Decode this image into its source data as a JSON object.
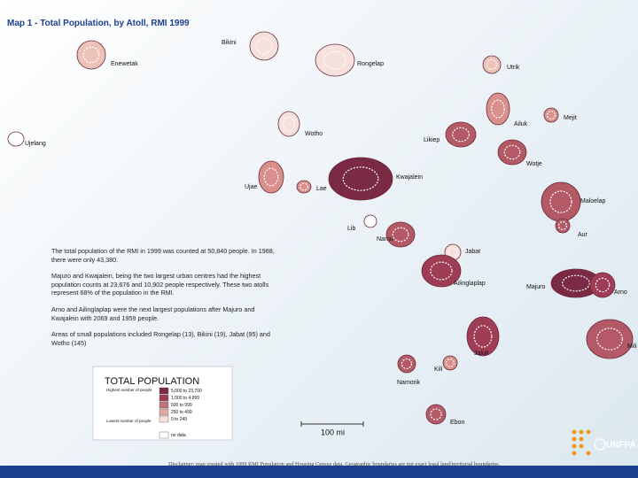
{
  "title": "Map 1 - Total Population, by Atoll, RMI 1999",
  "paragraphs": [
    "The total population of the RMI in 1999 was counted at 50,840 people. In 1988, there were only 43,380.",
    "Majuro and Kwajalein, being the two largest urban centres had the highest population counts at 23,676 and 10,902 people respectively. These two atolls represent 68% of the population in the RMI.",
    "Arno and Ailinglaplap were the next largest populations after Majuro and Kwajalein with 2069 and 1959 people.",
    "Areas of small populations included Rongelap (13), Bikini (19), Jabat (95) and Wotho (145)"
  ],
  "atolls": [
    {
      "label": "Bikini",
      "color": "#f6e1dc"
    },
    {
      "label": "Enewetak",
      "color": "#ecc2b9"
    },
    {
      "label": "Rongelap",
      "color": "#f6e1dc"
    },
    {
      "label": "Utrik",
      "color": "#ecc2b9"
    },
    {
      "label": "Ujelang",
      "color": "#ffffff"
    },
    {
      "label": "Wotho",
      "color": "#f6e1dc"
    },
    {
      "label": "Ailuk",
      "color": "#d98f8c"
    },
    {
      "label": "Mejit",
      "color": "#d98f8c"
    },
    {
      "label": "Likiep",
      "color": "#b35a66"
    },
    {
      "label": "Wotje",
      "color": "#b35a66"
    },
    {
      "label": "Kwajalein",
      "color": "#7a2a45"
    },
    {
      "label": "Ujae",
      "color": "#d98f8c"
    },
    {
      "label": "Lae",
      "color": "#d98f8c"
    },
    {
      "label": "Maloelap",
      "color": "#b35a66"
    },
    {
      "label": "Lib",
      "color": "#ffffff"
    },
    {
      "label": "Namu",
      "color": "#b35a66"
    },
    {
      "label": "Aur",
      "color": "#b35a66"
    },
    {
      "label": "Jabat",
      "color": "#f6e1dc"
    },
    {
      "label": "Ailinglaplap",
      "color": "#9e3d55"
    },
    {
      "label": "Majuro",
      "color": "#7a2a45"
    },
    {
      "label": "Arno",
      "color": "#9e3d55"
    },
    {
      "label": "Mili",
      "color": "#b35a66"
    },
    {
      "label": "Jaluit",
      "color": "#9e3d55"
    },
    {
      "label": "Kili",
      "color": "#d98f8c"
    },
    {
      "label": "Namorik",
      "color": "#b35a66"
    },
    {
      "label": "Ebon",
      "color": "#b35a66"
    }
  ],
  "legend": {
    "title": "TOTAL POPULATION",
    "high": "Highest number of people",
    "low": "Lowest number of people",
    "items": [
      {
        "label": "5,000 to 23,700",
        "color": "#7a2a45"
      },
      {
        "label": "1,000 to 4,999",
        "color": "#9e3d55"
      },
      {
        "label": "500 to 999",
        "color": "#c5727a"
      },
      {
        "label": "250 to 499",
        "color": "#e2a8a2"
      },
      {
        "label": "0 to 249",
        "color": "#f6e1dc"
      },
      {
        "label": "no data",
        "color": "#ffffff"
      }
    ]
  },
  "scale": "100 mi",
  "disclaimer": "Disclaimer: map created with 1999 RMI Population and Housing Census data. Geographic boundaries are not exact legal land/territorial boundaries.",
  "logo": "UNFPA"
}
